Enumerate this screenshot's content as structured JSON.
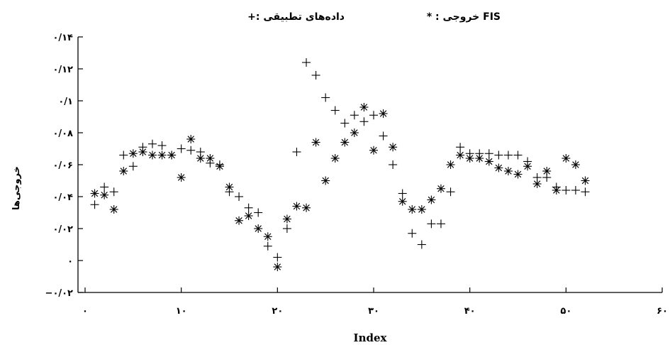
{
  "legend": {
    "fis_label": "* : خروجی FIS",
    "applied_label": "+: داده‌های تطبیقی"
  },
  "chart_data": {
    "type": "scatter",
    "title": "",
    "xlabel": "Index",
    "ylabel": "خروجی‌ها",
    "xlim": [
      0,
      60
    ],
    "ylim": [
      -0.02,
      0.14
    ],
    "x_ticks": [
      0,
      10,
      20,
      30,
      40,
      50,
      60
    ],
    "y_ticks": [
      -0.02,
      0,
      0.02,
      0.04,
      0.06,
      0.08,
      0.1,
      0.12,
      0.14
    ],
    "x_tick_labels": [
      "۰",
      "۱۰",
      "۲۰",
      "۳۰",
      "۴۰",
      "۵۰",
      "۶۰"
    ],
    "y_tick_labels": [
      "−۰/۰۲",
      "۰",
      "۰/۰۲",
      "۰/۰۴",
      "۰/۰۶",
      "۰/۰۸",
      "۰/۱",
      "۰/۱۲",
      "۰/۱۴"
    ],
    "grid": false,
    "series": [
      {
        "name": "خروجی FIS",
        "marker": "asterisk",
        "x": [
          1,
          2,
          3,
          4,
          5,
          6,
          7,
          8,
          9,
          10,
          11,
          12,
          13,
          14,
          15,
          16,
          17,
          18,
          19,
          20,
          21,
          22,
          23,
          24,
          25,
          26,
          27,
          28,
          29,
          30,
          31,
          32,
          33,
          34,
          35,
          36,
          37,
          38,
          39,
          40,
          41,
          42,
          43,
          44,
          45,
          46,
          47,
          48,
          49,
          50,
          51,
          52
        ],
        "y": [
          0.042,
          0.041,
          0.032,
          0.056,
          0.067,
          0.068,
          0.066,
          0.066,
          0.066,
          0.052,
          0.076,
          0.064,
          0.064,
          0.059,
          0.046,
          0.025,
          0.028,
          0.02,
          0.015,
          -0.004,
          0.026,
          0.034,
          0.033,
          0.074,
          0.05,
          0.064,
          0.074,
          0.08,
          0.096,
          0.069,
          0.092,
          0.071,
          0.037,
          0.032,
          0.032,
          0.038,
          0.045,
          0.06,
          0.066,
          0.064,
          0.064,
          0.062,
          0.058,
          0.056,
          0.054,
          0.059,
          0.048,
          0.056,
          0.044,
          0.064,
          0.06,
          0.05
        ]
      },
      {
        "name": "داده‌های تطبیقی",
        "marker": "plus",
        "x": [
          1,
          2,
          3,
          4,
          5,
          6,
          7,
          8,
          9,
          10,
          11,
          12,
          13,
          14,
          15,
          16,
          17,
          18,
          19,
          20,
          21,
          22,
          23,
          24,
          25,
          26,
          27,
          28,
          29,
          30,
          31,
          32,
          33,
          34,
          35,
          36,
          37,
          38,
          39,
          40,
          41,
          42,
          43,
          44,
          45,
          46,
          47,
          48,
          49,
          50,
          51,
          52
        ],
        "y": [
          0.035,
          0.046,
          0.043,
          0.066,
          0.059,
          0.071,
          0.073,
          0.072,
          0.066,
          0.07,
          0.069,
          0.068,
          0.061,
          0.06,
          0.043,
          0.04,
          0.033,
          0.03,
          0.009,
          0.002,
          0.02,
          0.068,
          0.124,
          0.116,
          0.102,
          0.094,
          0.086,
          0.091,
          0.087,
          0.091,
          0.078,
          0.06,
          0.042,
          0.017,
          0.01,
          0.023,
          0.023,
          0.043,
          0.071,
          0.067,
          0.067,
          0.067,
          0.066,
          0.066,
          0.066,
          0.062,
          0.052,
          0.052,
          0.046,
          0.044,
          0.044,
          0.043
        ]
      }
    ]
  }
}
